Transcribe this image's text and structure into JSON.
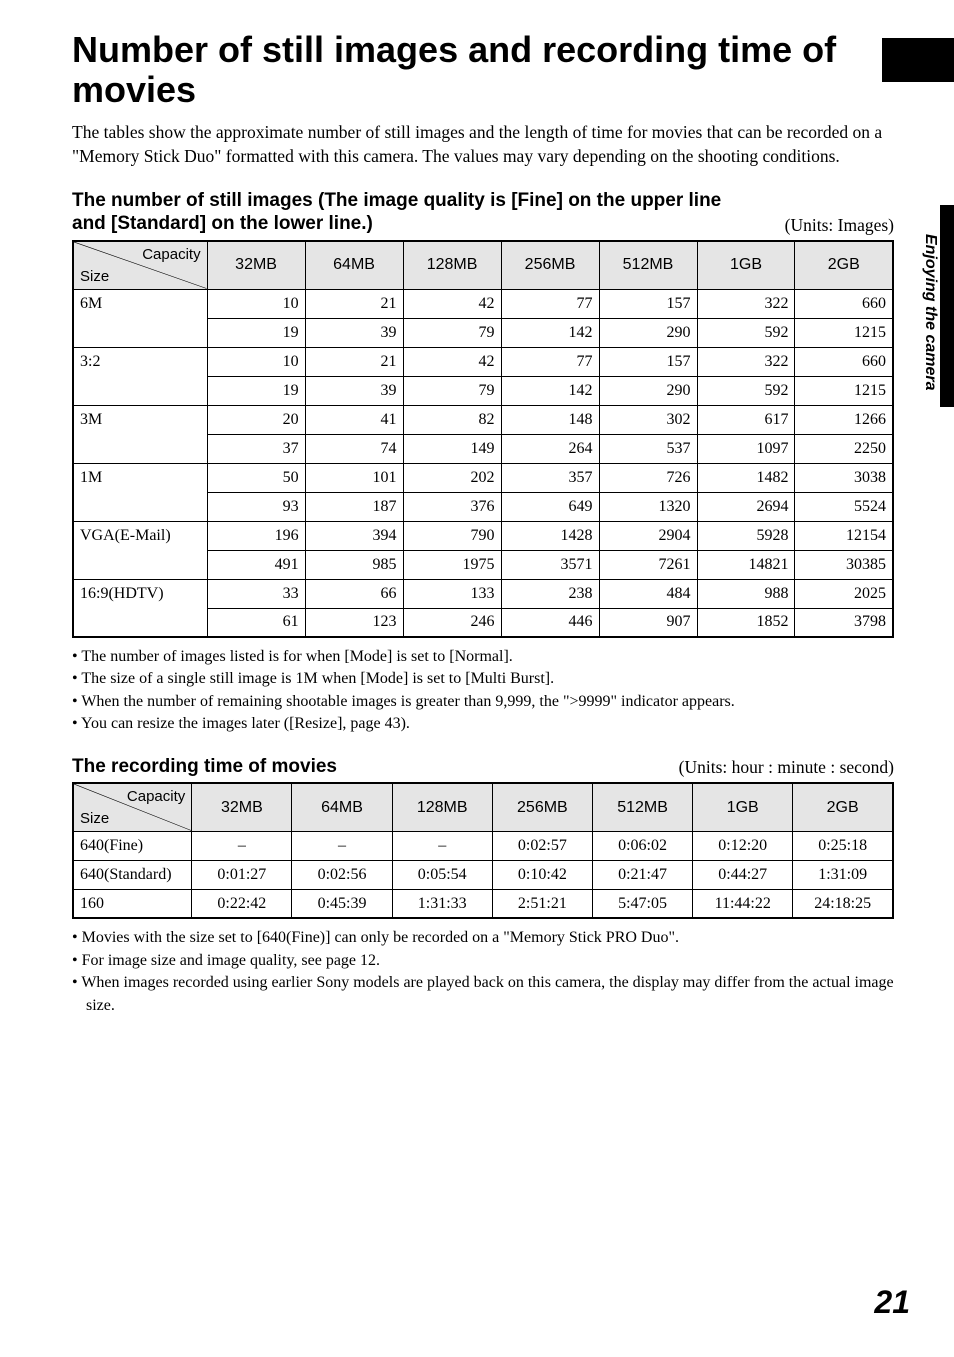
{
  "sideText": "Enjoying the camera",
  "pageNumber": "21",
  "title": "Number of still images and recording time of movies",
  "intro": "The tables show the approximate number of still images and the length of time for movies that can be recorded on a \"Memory Stick Duo\" formatted with this camera. The values may vary depending on the shooting conditions.",
  "table1": {
    "heading": "The number of still images (The image quality is [Fine] on the upper line and [Standard] on the lower line.)",
    "units": "(Units: Images)",
    "diagTop": "Capacity",
    "diagBottom": "Size",
    "columns": [
      "32MB",
      "64MB",
      "128MB",
      "256MB",
      "512MB",
      "1GB",
      "2GB"
    ],
    "rows": [
      {
        "label": "6M",
        "fine": [
          "10",
          "21",
          "42",
          "77",
          "157",
          "322",
          "660"
        ],
        "std": [
          "19",
          "39",
          "79",
          "142",
          "290",
          "592",
          "1215"
        ]
      },
      {
        "label": "3:2",
        "fine": [
          "10",
          "21",
          "42",
          "77",
          "157",
          "322",
          "660"
        ],
        "std": [
          "19",
          "39",
          "79",
          "142",
          "290",
          "592",
          "1215"
        ]
      },
      {
        "label": "3M",
        "fine": [
          "20",
          "41",
          "82",
          "148",
          "302",
          "617",
          "1266"
        ],
        "std": [
          "37",
          "74",
          "149",
          "264",
          "537",
          "1097",
          "2250"
        ]
      },
      {
        "label": "1M",
        "fine": [
          "50",
          "101",
          "202",
          "357",
          "726",
          "1482",
          "3038"
        ],
        "std": [
          "93",
          "187",
          "376",
          "649",
          "1320",
          "2694",
          "5524"
        ]
      },
      {
        "label": "VGA(E-Mail)",
        "fine": [
          "196",
          "394",
          "790",
          "1428",
          "2904",
          "5928",
          "12154"
        ],
        "std": [
          "491",
          "985",
          "1975",
          "3571",
          "7261",
          "14821",
          "30385"
        ]
      },
      {
        "label": "16:9(HDTV)",
        "fine": [
          "33",
          "66",
          "133",
          "238",
          "484",
          "988",
          "2025"
        ],
        "std": [
          "61",
          "123",
          "246",
          "446",
          "907",
          "1852",
          "3798"
        ]
      }
    ],
    "notes": [
      "The number of images listed is for when [Mode] is set to [Normal].",
      "The size of a single still image is 1M when [Mode] is set to [Multi Burst].",
      "When the number of remaining shootable images is greater than 9,999, the \">9999\" indicator appears.",
      "You can resize the images later ([Resize], page 43)."
    ]
  },
  "table2": {
    "heading": "The recording time of movies",
    "units": "(Units: hour : minute : second)",
    "diagTop": "Capacity",
    "diagBottom": "Size",
    "columns": [
      "32MB",
      "64MB",
      "128MB",
      "256MB",
      "512MB",
      "1GB",
      "2GB"
    ],
    "rows": [
      {
        "label": "640(Fine)",
        "vals": [
          "–",
          "–",
          "–",
          "0:02:57",
          "0:06:02",
          "0:12:20",
          "0:25:18"
        ]
      },
      {
        "label": "640(Standard)",
        "vals": [
          "0:01:27",
          "0:02:56",
          "0:05:54",
          "0:10:42",
          "0:21:47",
          "0:44:27",
          "1:31:09"
        ]
      },
      {
        "label": "160",
        "vals": [
          "0:22:42",
          "0:45:39",
          "1:31:33",
          "2:51:21",
          "5:47:05",
          "11:44:22",
          "24:18:25"
        ]
      }
    ],
    "notes": [
      "Movies with the size set to [640(Fine)] can only be recorded on a \"Memory Stick PRO Duo\".",
      "For image size and image quality, see page 12.",
      "When images recorded using earlier Sony models are played back on this camera, the display may differ from the actual image size."
    ]
  }
}
